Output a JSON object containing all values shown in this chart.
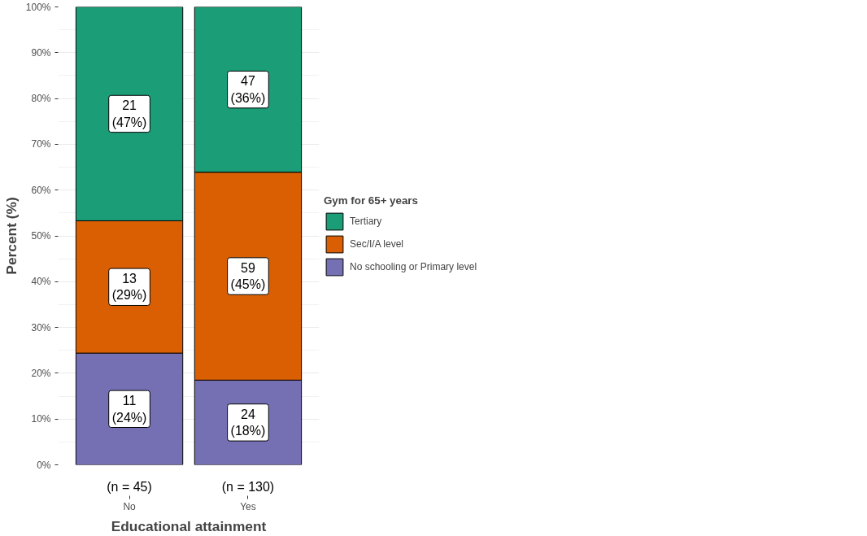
{
  "chart_data": {
    "type": "bar",
    "stacked": true,
    "xlabel": "Educational attainment",
    "ylabel": "Percent (%)",
    "legend_title": "Gym for 65+ years",
    "categories": [
      "No",
      "Yes"
    ],
    "series": [
      {
        "name": "No schooling or Primary level",
        "color": "#7570b3",
        "values": [
          24.4,
          18.5
        ],
        "value_labels": [
          "11\n(24%)",
          "24\n(18%)"
        ]
      },
      {
        "name": "Sec/I/A level",
        "color": "#d95f02",
        "values": [
          28.9,
          45.4
        ],
        "value_labels": [
          "13\n(29%)",
          "59\n(45%)"
        ]
      },
      {
        "name": "Tertiary",
        "color": "#1b9e77",
        "values": [
          46.7,
          36.1
        ],
        "value_labels": [
          "21\n(47%)",
          "47\n(36%)"
        ]
      }
    ],
    "ylim": [
      0,
      100
    ],
    "yticks": [
      {
        "value": 0,
        "label": "0%"
      },
      {
        "value": 10,
        "label": "10%"
      },
      {
        "value": 20,
        "label": "20%"
      },
      {
        "value": 30,
        "label": "30%"
      },
      {
        "value": 40,
        "label": "40%"
      },
      {
        "value": 50,
        "label": "50%"
      },
      {
        "value": 60,
        "label": "60%"
      },
      {
        "value": 70,
        "label": "70%"
      },
      {
        "value": 80,
        "label": "80%"
      },
      {
        "value": 90,
        "label": "90%"
      },
      {
        "value": 100,
        "label": "100%"
      }
    ],
    "annotations": [
      {
        "text": "(n = 45)",
        "x": "No"
      },
      {
        "text": "(n = 130)",
        "x": "Yes"
      }
    ],
    "grid": "y",
    "legend": "right"
  }
}
